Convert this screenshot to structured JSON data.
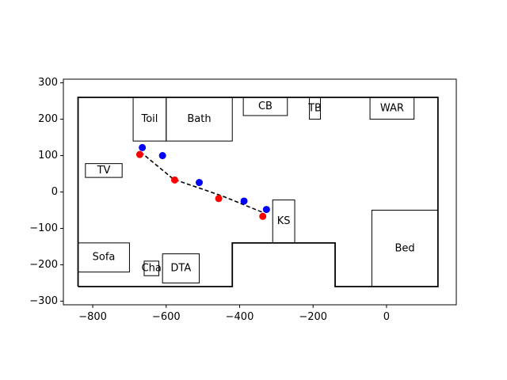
{
  "chart_data": {
    "type": "scatter",
    "title": "",
    "xlabel": "",
    "ylabel": "",
    "xlim": [
      -880,
      190
    ],
    "ylim": [
      -310,
      310
    ],
    "xticks": [
      -800,
      -600,
      -400,
      -200,
      0
    ],
    "xtick_labels": [
      "−800",
      "−600",
      "−400",
      "−200",
      "0"
    ],
    "yticks": [
      -300,
      -200,
      -100,
      0,
      100,
      200,
      300
    ],
    "ytick_labels": [
      "−300",
      "−200",
      "−100",
      "0",
      "100",
      "200",
      "300"
    ],
    "grid": false,
    "legend": "none",
    "colors": {
      "red_points": "#ff0000",
      "blue_points": "#0000ff",
      "path": "#000000",
      "walls": "#000000"
    },
    "walls": [
      [
        [
          -840,
          -260
        ],
        [
          -840,
          260
        ],
        [
          140,
          260
        ],
        [
          140,
          -260
        ],
        [
          -140,
          -260
        ],
        [
          -140,
          -140
        ],
        [
          -420,
          -140
        ],
        [
          -420,
          -260
        ],
        [
          -840,
          -260
        ]
      ]
    ],
    "furniture": [
      {
        "label": "Toil",
        "x0": -690,
        "x1": -600,
        "y0": 140,
        "y1": 260
      },
      {
        "label": "Bath",
        "x0": -600,
        "x1": -420,
        "y0": 140,
        "y1": 260
      },
      {
        "label": "CB",
        "x0": -390,
        "x1": -270,
        "y0": 210,
        "y1": 260
      },
      {
        "label": "TB",
        "x0": -210,
        "x1": -180,
        "y0": 200,
        "y1": 260
      },
      {
        "label": "WAR",
        "x0": -45,
        "x1": 75,
        "y0": 200,
        "y1": 260
      },
      {
        "label": "TV",
        "x0": -820,
        "x1": -720,
        "y0": 40,
        "y1": 78
      },
      {
        "label": "KS",
        "x0": -310,
        "x1": -250,
        "y0": -140,
        "y1": -22
      },
      {
        "label": "Sofa",
        "x0": -840,
        "x1": -700,
        "y0": -220,
        "y1": -140
      },
      {
        "label": "Cha",
        "x0": -660,
        "x1": -620,
        "y0": -230,
        "y1": -190
      },
      {
        "label": "DTA",
        "x0": -610,
        "x1": -510,
        "y0": -250,
        "y1": -170
      },
      {
        "label": "Bed",
        "x0": -40,
        "x1": 140,
        "y0": -260,
        "y1": -50
      }
    ],
    "path": {
      "x": [
        -670,
        -580,
        -450,
        -335
      ],
      "y": [
        110,
        35,
        -10,
        -57
      ]
    },
    "series": [
      {
        "color": "red",
        "x": [
          -672,
          -577,
          -457,
          -337
        ],
        "y": [
          103,
          33,
          -18,
          -67
        ]
      },
      {
        "color": "blue",
        "x": [
          -665,
          -610,
          -510,
          -388,
          -327
        ],
        "y": [
          122,
          100,
          26,
          -25,
          -48
        ]
      }
    ]
  }
}
